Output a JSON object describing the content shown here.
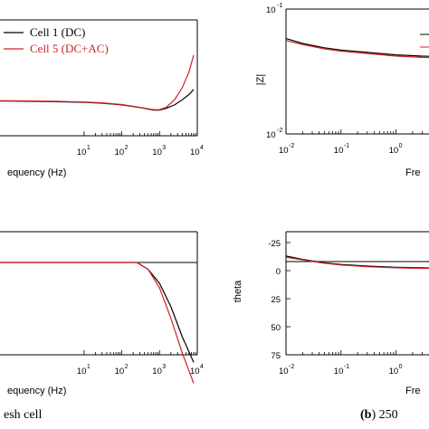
{
  "captions": {
    "left": "esh cell",
    "right_bold": "(b",
    "right_rest": ") 250"
  },
  "chart_data": [
    {
      "type": "line",
      "panel": "top-left",
      "xlabel": "equency (Hz)",
      "ylabel": "",
      "xscale": "log",
      "xlim": [
        0.001,
        10000
      ],
      "ylim": [
        0,
        1
      ],
      "x_ticks": [
        {
          "base": "10",
          "exp": "1",
          "value": 10
        },
        {
          "base": "10",
          "exp": "2",
          "value": 100
        },
        {
          "base": "10",
          "exp": "3",
          "value": 1000
        },
        {
          "base": "10",
          "exp": "4",
          "value": 10000
        }
      ],
      "legend": {
        "placement": "top-left"
      },
      "series": [
        {
          "name": "Cell 1 (DC)",
          "color": "#000000",
          "x": [
            0.001,
            0.01,
            0.1,
            1,
            10,
            30,
            100,
            300,
            700,
            1000,
            1500,
            2500,
            4000,
            6000,
            8000
          ],
          "y": [
            0.41,
            0.412,
            0.412,
            0.41,
            0.405,
            0.4,
            0.39,
            0.375,
            0.36,
            0.36,
            0.37,
            0.39,
            0.42,
            0.45,
            0.48
          ]
        },
        {
          "name": "Cell 5 (DC+AC)",
          "color": "#d0202a",
          "x": [
            0.001,
            0.01,
            0.1,
            1,
            10,
            30,
            100,
            300,
            700,
            1000,
            1500,
            2500,
            4000,
            6000,
            8000
          ],
          "y": [
            0.412,
            0.414,
            0.414,
            0.412,
            0.407,
            0.402,
            0.392,
            0.376,
            0.362,
            0.362,
            0.376,
            0.42,
            0.49,
            0.58,
            0.68
          ]
        }
      ]
    },
    {
      "type": "line",
      "panel": "top-right",
      "xlabel": "Fre",
      "ylabel": "|Z|",
      "xscale": "log",
      "yscale": "log",
      "xlim": [
        0.01,
        1000
      ],
      "ylim": [
        0.01,
        0.1
      ],
      "x_ticks": [
        {
          "base": "10",
          "exp": "-2",
          "value": 0.01
        },
        {
          "base": "10",
          "exp": "-1",
          "value": 0.1
        },
        {
          "base": "10",
          "exp": "0",
          "value": 1
        }
      ],
      "y_ticks": [
        {
          "base": "10",
          "exp": "-1",
          "value": 0.1
        },
        {
          "base": "10",
          "exp": "-2",
          "value": 0.01
        }
      ],
      "series": [
        {
          "name": "",
          "color": "#000000",
          "x": [
            0.01,
            0.02,
            0.05,
            0.1,
            0.3,
            1,
            3,
            10,
            30
          ],
          "y": [
            0.058,
            0.053,
            0.049,
            0.047,
            0.045,
            0.043,
            0.042,
            0.0415,
            0.041
          ]
        },
        {
          "name": "",
          "color": "#d0202a",
          "x": [
            0.01,
            0.02,
            0.05,
            0.1,
            0.3,
            1,
            3,
            10,
            30
          ],
          "y": [
            0.056,
            0.052,
            0.048,
            0.046,
            0.044,
            0.042,
            0.041,
            0.0405,
            0.04
          ]
        }
      ]
    },
    {
      "type": "line",
      "panel": "bottom-left",
      "xlabel": "equency (Hz)",
      "ylabel": "",
      "xscale": "log",
      "xlim": [
        0.001,
        10000
      ],
      "ylim": [
        -20,
        60
      ],
      "x_ticks": [
        {
          "base": "10",
          "exp": "1",
          "value": 10
        },
        {
          "base": "10",
          "exp": "2",
          "value": 100
        },
        {
          "base": "10",
          "exp": "3",
          "value": 1000
        },
        {
          "base": "10",
          "exp": "4",
          "value": 10000
        }
      ],
      "series": [
        {
          "name": "Cell 1 (DC)",
          "color": "#000000",
          "x": [
            0.001,
            0.01,
            0.1,
            1,
            10,
            100,
            250,
            500,
            1000,
            2000,
            4000,
            8000
          ],
          "y": [
            0,
            0,
            0,
            0,
            0,
            0,
            0,
            3,
            9,
            19,
            32,
            43
          ]
        },
        {
          "name": "Cell 5 (DC+AC)",
          "color": "#d0202a",
          "x": [
            0.001,
            0.01,
            0.1,
            1,
            10,
            100,
            250,
            500,
            1000,
            2000,
            4000,
            8000
          ],
          "y": [
            0,
            0,
            0,
            0,
            0,
            0,
            0,
            3,
            11,
            24,
            39,
            52
          ]
        }
      ]
    },
    {
      "type": "line",
      "panel": "bottom-right",
      "xlabel": "Fre",
      "ylabel": "theta",
      "xscale": "log",
      "xlim": [
        0.01,
        1000
      ],
      "ylim": [
        -25,
        75
      ],
      "x_ticks": [
        {
          "base": "10",
          "exp": "-2",
          "value": 0.01
        },
        {
          "base": "10",
          "exp": "-1",
          "value": 0.1
        },
        {
          "base": "10",
          "exp": "0",
          "value": 1
        }
      ],
      "y_ticks": [
        -25,
        0,
        25,
        50,
        75
      ],
      "y_tick_labels": [
        "-25",
        "0",
        "25",
        "50",
        "75"
      ],
      "series": [
        {
          "name": "",
          "color": "#000000",
          "x": [
            0.01,
            0.02,
            0.05,
            0.1,
            0.3,
            1,
            3,
            10,
            30
          ],
          "y": [
            -13,
            -10,
            -7,
            -5.5,
            -4,
            -3,
            -2.5,
            -2,
            -1.5
          ]
        },
        {
          "name": "",
          "color": "#d0202a",
          "x": [
            0.01,
            0.02,
            0.05,
            0.1,
            0.3,
            1,
            3,
            10,
            30
          ],
          "y": [
            -12,
            -9.5,
            -6.5,
            -5,
            -3.5,
            -2.5,
            -2,
            -1.8,
            -1.5
          ]
        }
      ]
    }
  ]
}
